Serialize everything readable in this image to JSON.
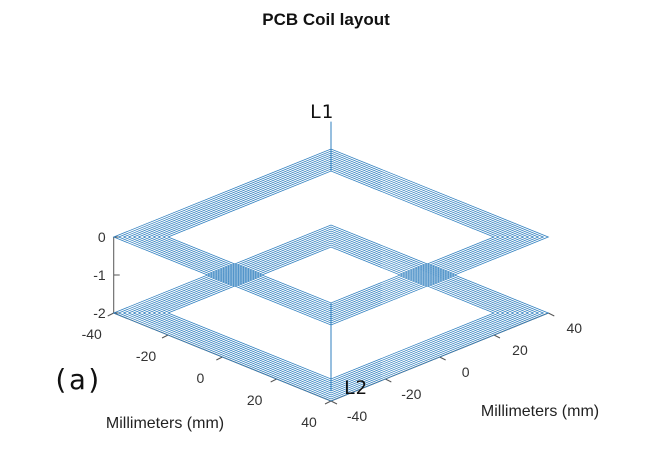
{
  "chart_data": {
    "type": "line",
    "title": "PCB Coil layout",
    "panel_label": "(a)",
    "xlabel": "Millimeters (mm)",
    "ylabel": "Millimeters (mm)",
    "zlabel": "",
    "xlim": [
      -40,
      40
    ],
    "ylim": [
      -40,
      40
    ],
    "zlim": [
      -2,
      0
    ],
    "x_ticks": [
      "-40",
      "-20",
      "0",
      "20",
      "40"
    ],
    "y_ticks": [
      "-40",
      "-20",
      "0",
      "20",
      "40"
    ],
    "z_ticks": [
      "-2",
      "-1",
      "0"
    ],
    "line_color": "#2f7fbf",
    "series": [
      {
        "annotation": "L1",
        "z": 0,
        "turns": 12,
        "outer_half_width": 40,
        "inner_half_width": 30,
        "connector": [
          0,
          40,
          0,
          0,
          40,
          -2
        ]
      },
      {
        "annotation": "L2",
        "z": -2,
        "turns": 12,
        "outer_half_width": 40,
        "inner_half_width": 30,
        "connector": [
          0,
          40,
          0,
          0,
          40,
          -2
        ]
      }
    ]
  }
}
